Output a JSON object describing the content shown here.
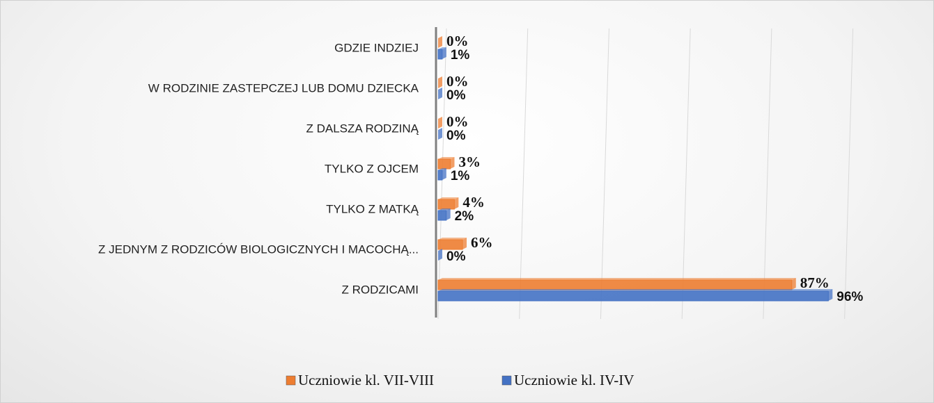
{
  "chart_data": {
    "type": "bar",
    "orientation": "horizontal",
    "categories": [
      "GDZIE INDZIEJ",
      "W RODZINIE ZASTEPCZEJ LUB DOMU DZIECKA",
      "Z DALSZA RODZINĄ ",
      "TYLKO Z OJCEM",
      "TYLKO Z MATKĄ",
      "Z JEDNYM Z RODZICÓW BIOLOGICZNYCH I MACOCHĄ...",
      "Z RODZICAMI"
    ],
    "series": [
      {
        "name": "Uczniowie kl. VII-VIII",
        "color": "#ed7d31",
        "values": [
          0,
          0,
          0,
          3,
          4,
          6,
          87
        ],
        "value_labels": [
          "0%",
          "0%",
          "0%",
          "3%",
          "4%",
          "6%",
          "87%"
        ]
      },
      {
        "name": "Uczniowie kl. IV-IV",
        "color": "#4472c4",
        "values": [
          1,
          0,
          0,
          1,
          2,
          0,
          96
        ],
        "value_labels": [
          "1%",
          "0%",
          "0%",
          "1%",
          "2%",
          "0%",
          "96%"
        ]
      }
    ],
    "xlim": [
      0,
      110
    ],
    "xticks": [
      0,
      20,
      40,
      60,
      80,
      100
    ],
    "grid": true,
    "legend": "bottom"
  }
}
